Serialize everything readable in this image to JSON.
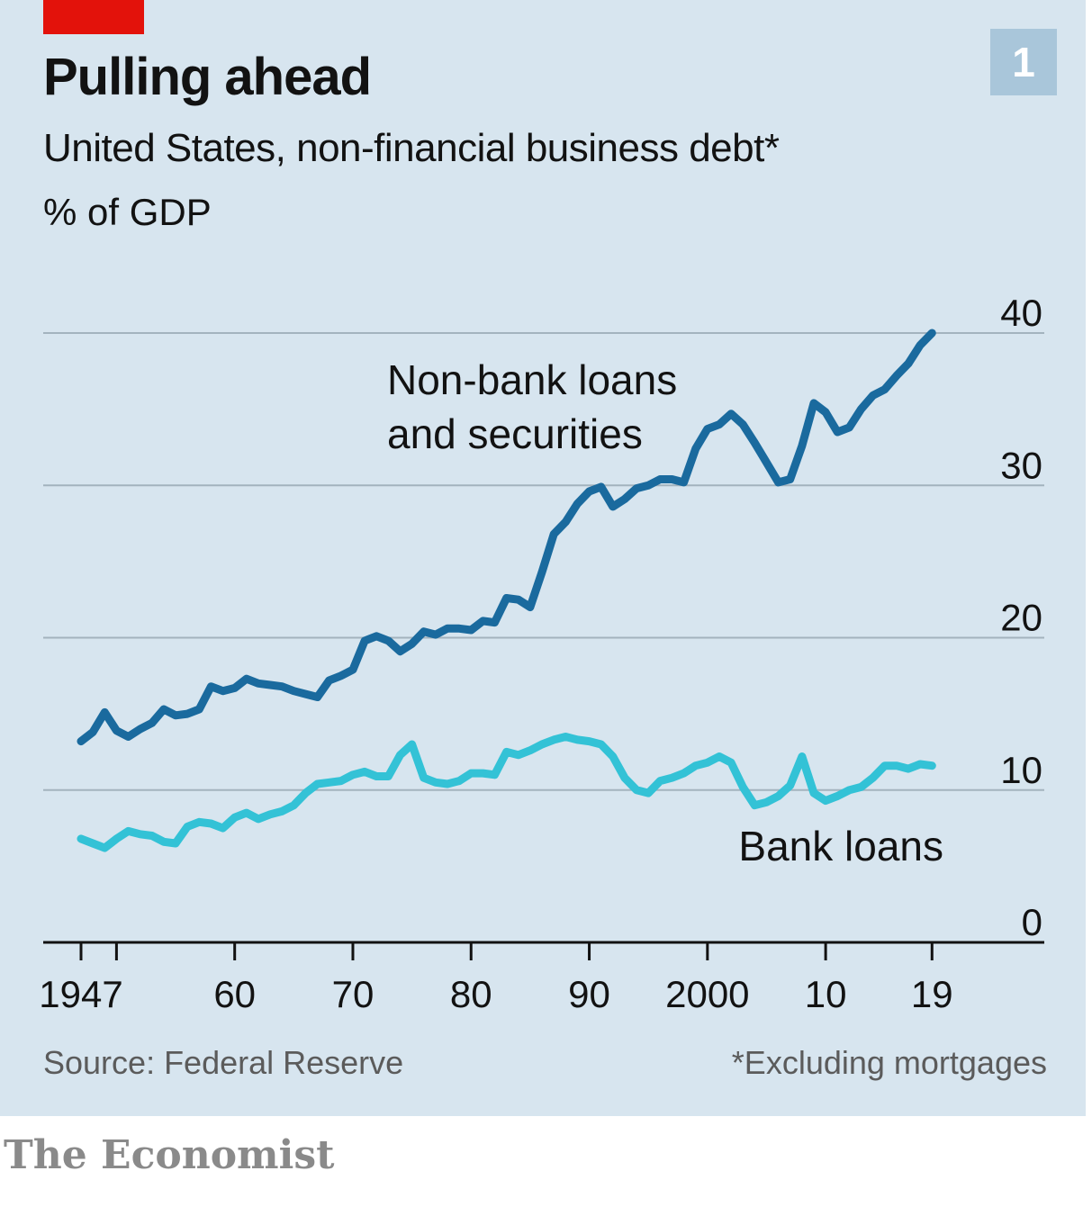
{
  "header": {
    "title": "Pulling ahead",
    "subtitle": "United States, non-financial business debt*",
    "unit": "% of GDP",
    "badge": "1"
  },
  "footer": {
    "source": "Source: Federal Reserve",
    "footnote": "*Excluding mortgages",
    "brand": "The Economist"
  },
  "colors": {
    "panel": "#d7e5ef",
    "accent_red": "#e3120b",
    "nonbank": "#1a6a9e",
    "bank": "#33c2d6",
    "grid": "#a3b3be",
    "axis": "#121212"
  },
  "chart_data": {
    "type": "line",
    "title": "Pulling ahead",
    "subtitle": "United States, non-financial business debt*",
    "ylabel": "% of GDP",
    "xlabel": "",
    "ylim": [
      0,
      40
    ],
    "xlim": [
      1943.8,
      2028.5
    ],
    "yticks": [
      0,
      10,
      20,
      30,
      40
    ],
    "ytick_labels": [
      "0",
      "10",
      "20",
      "30",
      "40"
    ],
    "xticks": [
      1947,
      1950,
      1960,
      1970,
      1980,
      1990,
      2000,
      2010,
      2019
    ],
    "xtick_labels": [
      "1947",
      "",
      "60",
      "70",
      "80",
      "90",
      "2000",
      "10",
      "19"
    ],
    "grid": true,
    "series": [
      {
        "name": "Non-bank loans and securities",
        "label_lines": [
          "Non-bank loans",
          "and securities"
        ],
        "color": "#1a6a9e",
        "x": [
          1947,
          1948,
          1949,
          1950,
          1951,
          1952,
          1953,
          1954,
          1955,
          1956,
          1957,
          1958,
          1959,
          1960,
          1961,
          1962,
          1963,
          1964,
          1965,
          1966,
          1967,
          1968,
          1969,
          1970,
          1971,
          1972,
          1973,
          1974,
          1975,
          1976,
          1977,
          1978,
          1979,
          1980,
          1981,
          1982,
          1983,
          1984,
          1985,
          1986,
          1987,
          1988,
          1989,
          1990,
          1991,
          1992,
          1993,
          1994,
          1995,
          1996,
          1997,
          1998,
          1999,
          2000,
          2001,
          2002,
          2003,
          2004,
          2005,
          2006,
          2007,
          2008,
          2009,
          2010,
          2011,
          2012,
          2013,
          2014,
          2015,
          2016,
          2017,
          2018,
          2019
        ],
        "values": [
          13.2,
          13.8,
          15.1,
          13.9,
          13.5,
          14.0,
          14.4,
          15.3,
          14.9,
          15.0,
          15.3,
          16.8,
          16.5,
          16.7,
          17.3,
          17.0,
          16.9,
          16.8,
          16.5,
          16.3,
          16.1,
          17.2,
          17.5,
          17.9,
          19.8,
          20.1,
          19.8,
          19.1,
          19.6,
          20.4,
          20.2,
          20.6,
          20.6,
          20.5,
          21.1,
          21.0,
          22.6,
          22.5,
          22.0,
          24.3,
          26.8,
          27.6,
          28.8,
          29.6,
          29.9,
          28.6,
          29.1,
          29.8,
          30.0,
          30.4,
          30.4,
          30.2,
          32.4,
          33.7,
          34.0,
          34.7,
          34.0,
          32.8,
          31.5,
          30.2,
          30.4,
          32.6,
          35.4,
          34.8,
          33.5,
          33.8,
          35.0,
          35.9,
          36.3,
          37.2,
          38.0,
          39.2,
          40.0
        ]
      },
      {
        "name": "Bank loans",
        "label_lines": [
          "Bank loans"
        ],
        "color": "#33c2d6",
        "x": [
          1947,
          1948,
          1949,
          1950,
          1951,
          1952,
          1953,
          1954,
          1955,
          1956,
          1957,
          1958,
          1959,
          1960,
          1961,
          1962,
          1963,
          1964,
          1965,
          1966,
          1967,
          1968,
          1969,
          1970,
          1971,
          1972,
          1973,
          1974,
          1975,
          1976,
          1977,
          1978,
          1979,
          1980,
          1981,
          1982,
          1983,
          1984,
          1985,
          1986,
          1987,
          1988,
          1989,
          1990,
          1991,
          1992,
          1993,
          1994,
          1995,
          1996,
          1997,
          1998,
          1999,
          2000,
          2001,
          2002,
          2003,
          2004,
          2005,
          2006,
          2007,
          2008,
          2009,
          2010,
          2011,
          2012,
          2013,
          2014,
          2015,
          2016,
          2017,
          2018,
          2019
        ],
        "values": [
          6.8,
          6.5,
          6.2,
          6.8,
          7.3,
          7.1,
          7.0,
          6.6,
          6.5,
          7.6,
          7.9,
          7.8,
          7.5,
          8.2,
          8.5,
          8.1,
          8.4,
          8.6,
          9.0,
          9.8,
          10.4,
          10.5,
          10.6,
          11.0,
          11.2,
          10.9,
          10.9,
          12.3,
          13.0,
          10.8,
          10.5,
          10.4,
          10.6,
          11.1,
          11.1,
          11.0,
          12.5,
          12.3,
          12.6,
          13.0,
          13.3,
          13.5,
          13.3,
          13.2,
          13.0,
          12.2,
          10.8,
          10.0,
          9.8,
          10.6,
          10.8,
          11.1,
          11.6,
          11.8,
          12.2,
          11.8,
          10.2,
          9.0,
          9.2,
          9.6,
          10.3,
          12.2,
          9.8,
          9.3,
          9.6,
          10.0,
          10.2,
          10.8,
          11.6,
          11.6,
          11.4,
          11.7,
          11.6
        ]
      }
    ]
  }
}
